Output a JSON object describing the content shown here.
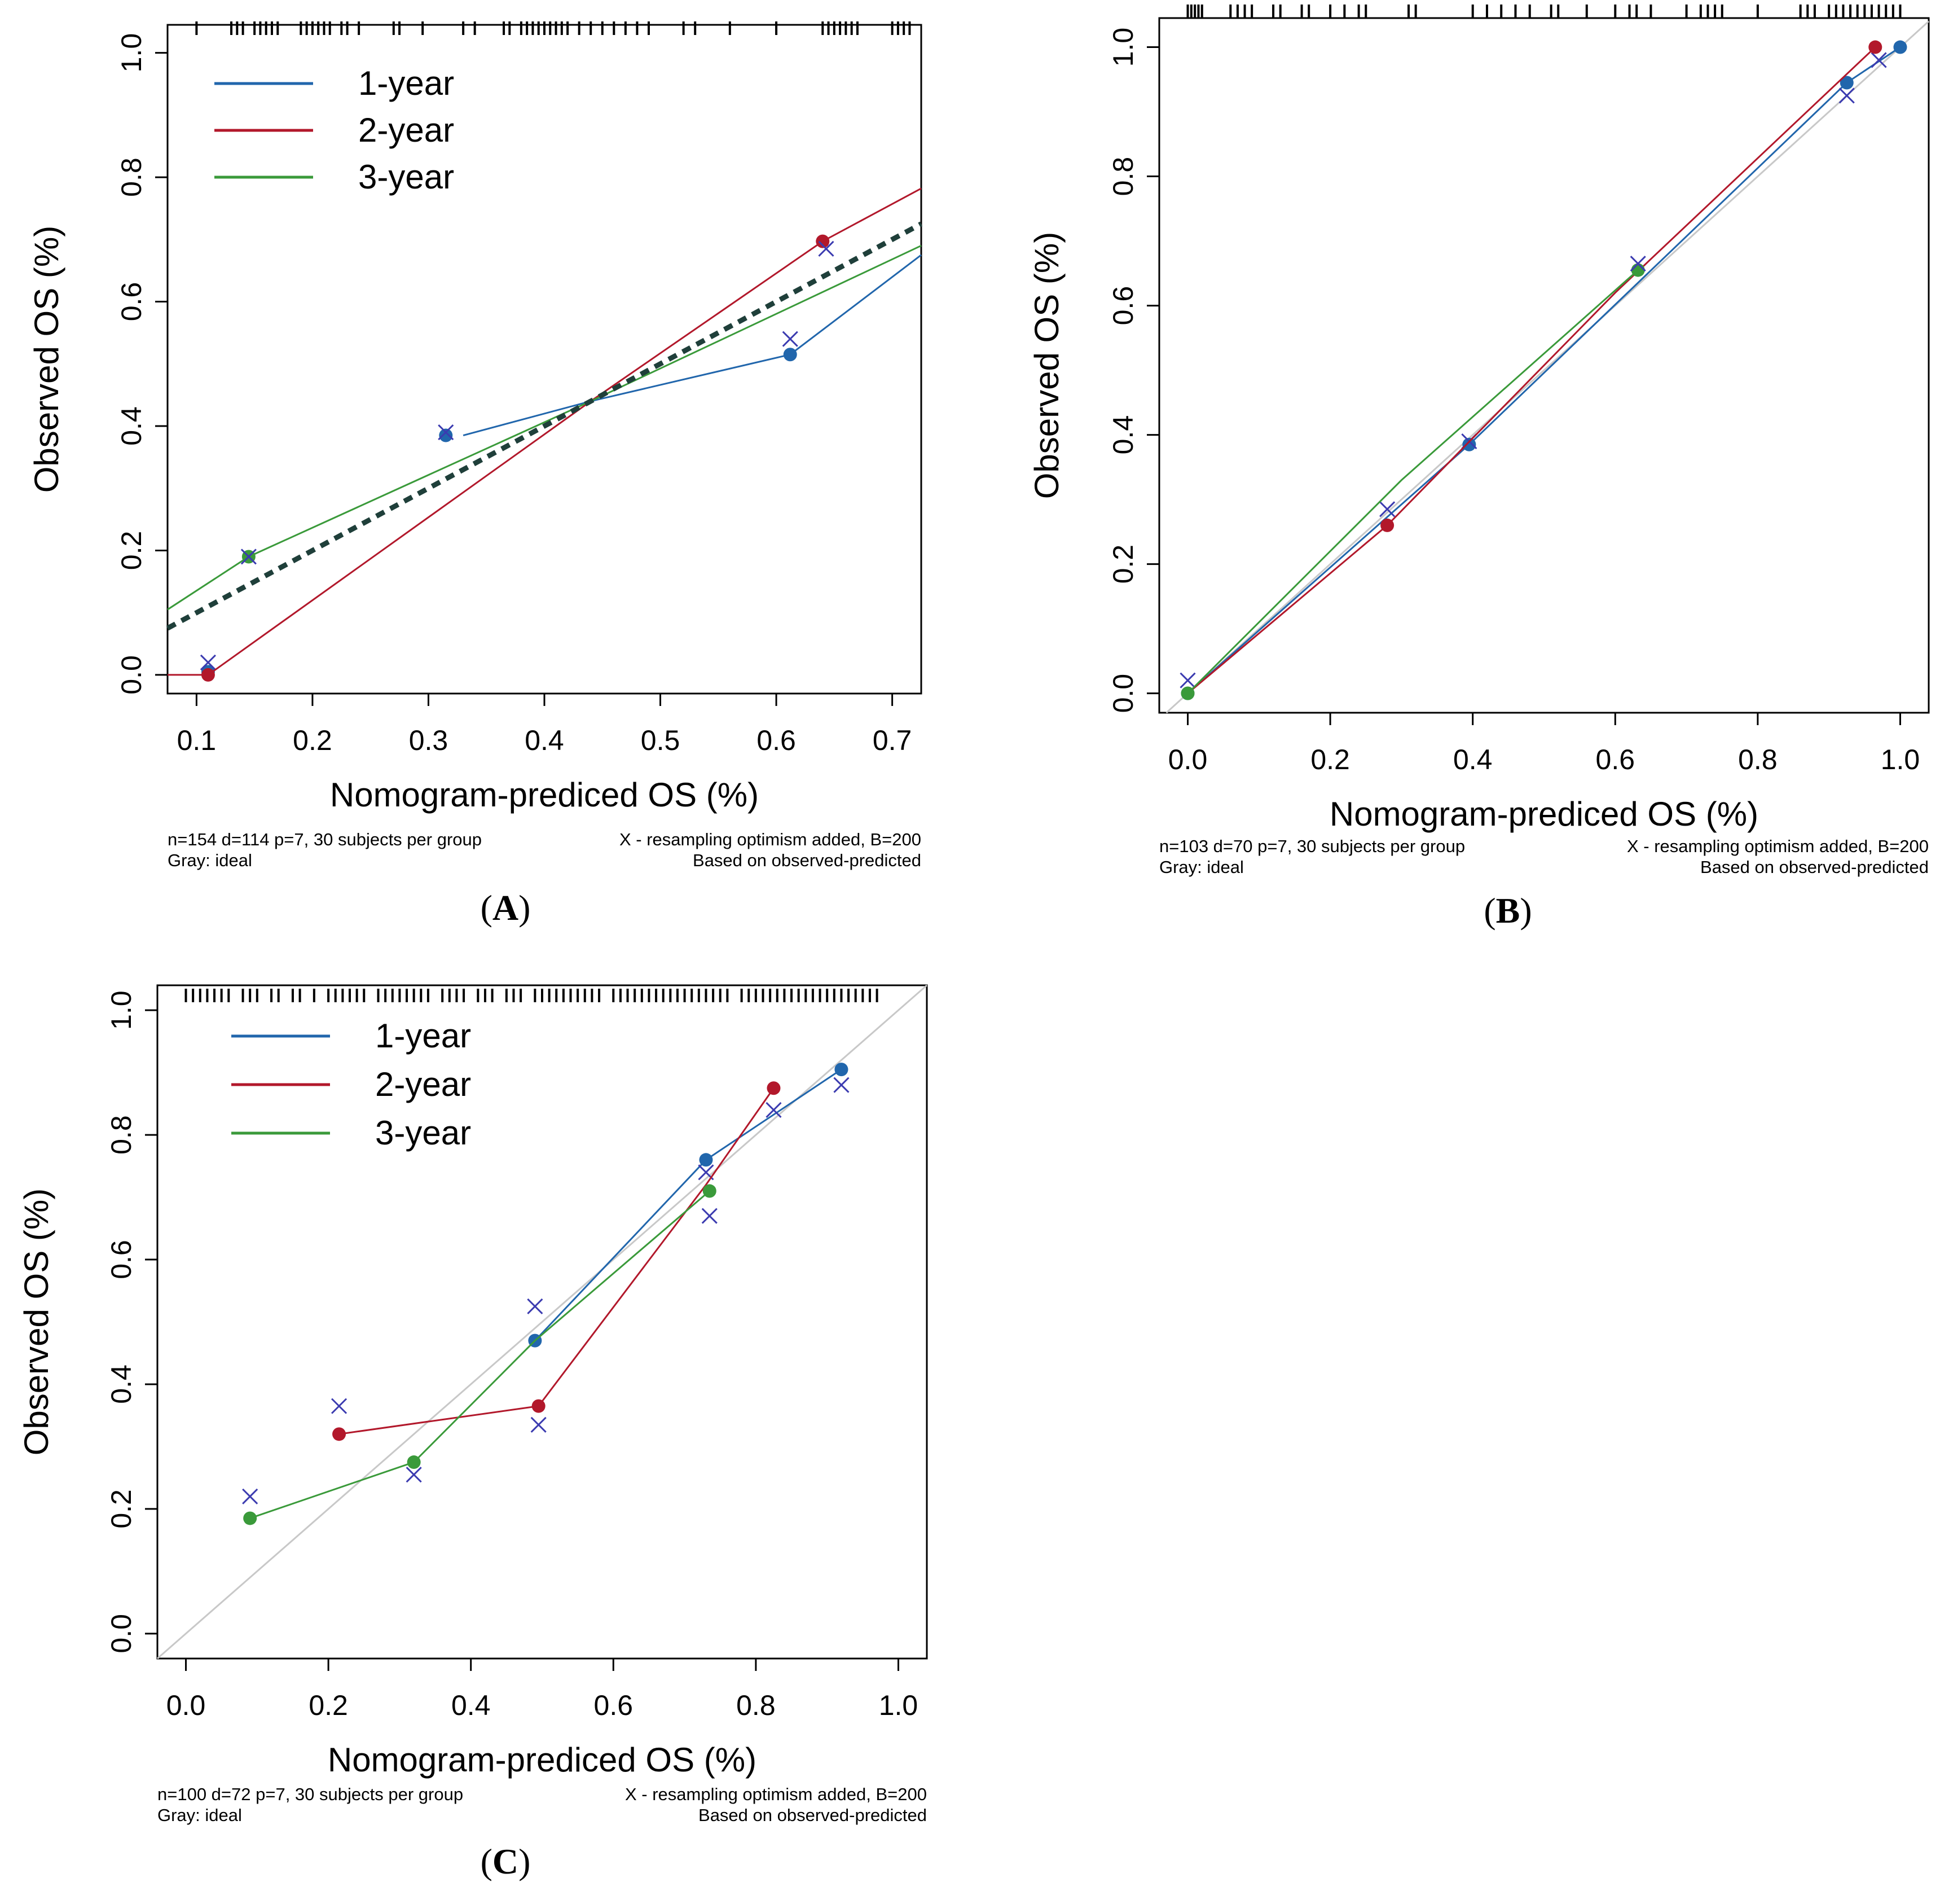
{
  "colors": {
    "one_year": "#2166ac",
    "two_year": "#b2182b",
    "three_year": "#3a9a3a",
    "x_marker": "#3b3bb0",
    "ideal": "#c8c8c8",
    "dashed": "#1f3f3a"
  },
  "chart_data": [
    {
      "panel": "A",
      "type": "line",
      "xlabel": "Nomogram-prediced OS (%)",
      "ylabel": "Observed OS (%)",
      "xlim": [
        0.075,
        0.725
      ],
      "ylim": [
        -0.03,
        1.045
      ],
      "xticks": [
        0.1,
        0.2,
        0.3,
        0.4,
        0.5,
        0.6,
        0.7
      ],
      "xtick_labels": [
        "0.1",
        "0.2",
        "0.3",
        "0.4",
        "0.5",
        "0.6",
        "0.7"
      ],
      "yticks": [
        0.0,
        0.2,
        0.4,
        0.6,
        0.8,
        1.0
      ],
      "ytick_labels": [
        "0.0",
        "0.2",
        "0.4",
        "0.6",
        "0.8",
        "1.0"
      ],
      "legend": [
        "1-year",
        "2-year",
        "3-year"
      ],
      "footnote_left": [
        "n=154 d=114 p=7, 30 subjects per group",
        "Gray: ideal"
      ],
      "footnote_right": [
        "X - resampling optimism added, B=200",
        "Based on observed-predicted"
      ],
      "series": [
        {
          "name": "1-year",
          "color_key": "one_year",
          "points": [
            [
              0.11,
              0.005
            ],
            [
              0.315,
              0.385
            ],
            [
              0.612,
              0.515
            ]
          ],
          "crosses": [
            [
              0.11,
              0.02
            ],
            [
              0.315,
              0.39
            ],
            [
              0.612,
              0.54
            ]
          ],
          "line": [
            [
              0.33,
              0.385
            ],
            [
              0.44,
              0.44
            ],
            [
              0.612,
              0.515
            ],
            [
              0.725,
              0.675
            ]
          ]
        },
        {
          "name": "2-year",
          "color_key": "two_year",
          "points": [
            [
              0.11,
              0.0
            ],
            [
              0.64,
              0.697
            ]
          ],
          "crosses": [
            [
              0.643,
              0.685
            ]
          ],
          "line": [
            [
              0.075,
              0.0
            ],
            [
              0.11,
              0.0
            ],
            [
              0.44,
              0.44
            ],
            [
              0.64,
              0.697
            ],
            [
              0.725,
              0.782
            ]
          ]
        },
        {
          "name": "3-year",
          "color_key": "three_year",
          "points": [
            [
              0.145,
              0.19
            ]
          ],
          "crosses": [
            [
              0.145,
              0.19
            ]
          ],
          "line": [
            [
              0.075,
              0.105
            ],
            [
              0.145,
              0.19
            ],
            [
              0.44,
              0.44
            ],
            [
              0.725,
              0.69
            ]
          ]
        },
        {
          "name": "dashed-fit",
          "color_key": "dashed",
          "dashed": true,
          "line": [
            [
              0.075,
              0.075
            ],
            [
              0.725,
              0.725
            ]
          ]
        }
      ],
      "ideal_line": false,
      "rug": [
        0.1,
        0.13,
        0.135,
        0.14,
        0.15,
        0.155,
        0.16,
        0.165,
        0.17,
        0.19,
        0.195,
        0.2,
        0.205,
        0.21,
        0.215,
        0.225,
        0.23,
        0.24,
        0.27,
        0.275,
        0.295,
        0.33,
        0.34,
        0.365,
        0.37,
        0.38,
        0.385,
        0.39,
        0.395,
        0.4,
        0.405,
        0.41,
        0.415,
        0.42,
        0.43,
        0.44,
        0.45,
        0.46,
        0.47,
        0.48,
        0.49,
        0.52,
        0.53,
        0.56,
        0.6,
        0.64,
        0.645,
        0.65,
        0.655,
        0.66,
        0.665,
        0.67,
        0.7,
        0.705,
        0.71,
        0.715
      ]
    },
    {
      "panel": "B",
      "type": "line",
      "xlabel": "Nomogram-prediced OS (%)",
      "ylabel": "Observed OS (%)",
      "xlim": [
        -0.04,
        1.04
      ],
      "ylim": [
        -0.03,
        1.045
      ],
      "xticks": [
        0.0,
        0.2,
        0.4,
        0.6,
        0.8,
        1.0
      ],
      "xtick_labels": [
        "0.0",
        "0.2",
        "0.4",
        "0.6",
        "0.8",
        "1.0"
      ],
      "yticks": [
        0.0,
        0.2,
        0.4,
        0.6,
        0.8,
        1.0
      ],
      "ytick_labels": [
        "0.0",
        "0.2",
        "0.4",
        "0.6",
        "0.8",
        "1.0"
      ],
      "legend": [],
      "footnote_left": [
        "n=103 d=70 p=7, 30 subjects per group",
        "Gray: ideal"
      ],
      "footnote_right": [
        "X - resampling optimism added, B=200",
        "Based on observed-predicted"
      ],
      "series": [
        {
          "name": "1-year",
          "color_key": "one_year",
          "points": [
            [
              0.0,
              0.0
            ],
            [
              0.395,
              0.385
            ],
            [
              0.925,
              0.945
            ],
            [
              1.0,
              1.0
            ]
          ],
          "crosses": [
            [
              0.0,
              0.02
            ],
            [
              0.395,
              0.39
            ],
            [
              0.925,
              0.925
            ],
            [
              0.97,
              0.98
            ]
          ],
          "line": [
            [
              0.0,
              0.0
            ],
            [
              0.395,
              0.385
            ],
            [
              0.925,
              0.945
            ],
            [
              1.0,
              1.0
            ]
          ]
        },
        {
          "name": "2-year",
          "color_key": "two_year",
          "points": [
            [
              0.28,
              0.26
            ],
            [
              0.965,
              1.0
            ]
          ],
          "crosses": [
            [
              0.28,
              0.285
            ]
          ],
          "line": [
            [
              0.0,
              0.0
            ],
            [
              0.28,
              0.26
            ],
            [
              0.6,
              0.62
            ],
            [
              0.965,
              1.0
            ]
          ]
        },
        {
          "name": "3-year",
          "color_key": "three_year",
          "points": [
            [
              0.0,
              0.0
            ],
            [
              0.632,
              0.655
            ]
          ],
          "crosses": [
            [
              0.632,
              0.665
            ]
          ],
          "line": [
            [
              0.0,
              0.0
            ],
            [
              0.3,
              0.33
            ],
            [
              0.632,
              0.655
            ]
          ]
        }
      ],
      "ideal_line": true,
      "rug": [
        0.0,
        0.005,
        0.01,
        0.015,
        0.02,
        0.06,
        0.07,
        0.08,
        0.09,
        0.12,
        0.13,
        0.16,
        0.17,
        0.2,
        0.22,
        0.24,
        0.25,
        0.31,
        0.32,
        0.4,
        0.42,
        0.44,
        0.46,
        0.48,
        0.51,
        0.52,
        0.56,
        0.6,
        0.62,
        0.63,
        0.65,
        0.7,
        0.72,
        0.73,
        0.74,
        0.75,
        0.8,
        0.86,
        0.87,
        0.88,
        0.9,
        0.91,
        0.92,
        0.93,
        0.94,
        0.95,
        0.96,
        0.97,
        0.98,
        0.99,
        1.0
      ]
    },
    {
      "panel": "C",
      "type": "line",
      "xlabel": "Nomogram-prediced OS (%)",
      "ylabel": "Observed OS (%)",
      "xlim": [
        -0.04,
        1.04
      ],
      "ylim": [
        -0.04,
        1.04
      ],
      "xticks": [
        0.0,
        0.2,
        0.4,
        0.6,
        0.8,
        1.0
      ],
      "xtick_labels": [
        "0.0",
        "0.2",
        "0.4",
        "0.6",
        "0.8",
        "1.0"
      ],
      "yticks": [
        0.0,
        0.2,
        0.4,
        0.6,
        0.8,
        1.0
      ],
      "ytick_labels": [
        "0.0",
        "0.2",
        "0.4",
        "0.6",
        "0.8",
        "1.0"
      ],
      "legend": [
        "1-year",
        "2-year",
        "3-year"
      ],
      "footnote_left": [
        "n=100 d=72 p=7, 30 subjects per group",
        "Gray: ideal"
      ],
      "footnote_right": [
        "X - resampling optimism added, B=200",
        "Based on observed-predicted"
      ],
      "series": [
        {
          "name": "1-year",
          "color_key": "one_year",
          "points": [
            [
              0.49,
              0.47
            ],
            [
              0.73,
              0.76
            ],
            [
              0.92,
              0.905
            ]
          ],
          "crosses": [
            [
              0.49,
              0.525
            ],
            [
              0.73,
              0.74
            ],
            [
              0.92,
              0.88
            ]
          ],
          "line": [
            [
              0.49,
              0.47
            ],
            [
              0.73,
              0.76
            ],
            [
              0.92,
              0.905
            ]
          ]
        },
        {
          "name": "2-year",
          "color_key": "two_year",
          "points": [
            [
              0.215,
              0.32
            ],
            [
              0.495,
              0.365
            ],
            [
              0.825,
              0.875
            ]
          ],
          "crosses": [
            [
              0.215,
              0.365
            ],
            [
              0.495,
              0.335
            ],
            [
              0.825,
              0.84
            ]
          ],
          "line": [
            [
              0.215,
              0.32
            ],
            [
              0.495,
              0.365
            ],
            [
              0.73,
              0.72
            ],
            [
              0.825,
              0.875
            ]
          ]
        },
        {
          "name": "3-year",
          "color_key": "three_year",
          "points": [
            [
              0.09,
              0.185
            ],
            [
              0.32,
              0.275
            ],
            [
              0.735,
              0.71
            ]
          ],
          "crosses": [
            [
              0.09,
              0.22
            ],
            [
              0.32,
              0.255
            ],
            [
              0.735,
              0.67
            ]
          ],
          "line": [
            [
              0.09,
              0.185
            ],
            [
              0.32,
              0.275
            ],
            [
              0.49,
              0.47
            ],
            [
              0.735,
              0.71
            ]
          ]
        }
      ],
      "ideal_line": true,
      "rug": [
        0.0,
        0.01,
        0.02,
        0.03,
        0.04,
        0.05,
        0.06,
        0.08,
        0.09,
        0.1,
        0.12,
        0.13,
        0.15,
        0.16,
        0.18,
        0.2,
        0.21,
        0.22,
        0.23,
        0.24,
        0.25,
        0.27,
        0.28,
        0.29,
        0.3,
        0.31,
        0.32,
        0.33,
        0.34,
        0.36,
        0.37,
        0.38,
        0.39,
        0.41,
        0.42,
        0.43,
        0.45,
        0.46,
        0.47,
        0.49,
        0.5,
        0.51,
        0.52,
        0.53,
        0.54,
        0.55,
        0.56,
        0.57,
        0.58,
        0.6,
        0.61,
        0.62,
        0.63,
        0.64,
        0.65,
        0.66,
        0.67,
        0.68,
        0.69,
        0.7,
        0.71,
        0.72,
        0.73,
        0.74,
        0.75,
        0.76,
        0.78,
        0.79,
        0.8,
        0.81,
        0.82,
        0.83,
        0.84,
        0.85,
        0.86,
        0.87,
        0.88,
        0.89,
        0.9,
        0.91,
        0.92,
        0.93,
        0.94,
        0.95,
        0.96,
        0.97
      ]
    }
  ],
  "panel_labels": {
    "A": {
      "open": "(",
      "letter": "A",
      "close": ")"
    },
    "B": {
      "open": "(",
      "letter": "B",
      "close": ")"
    },
    "C": {
      "open": "(",
      "letter": "C",
      "close": ")"
    }
  }
}
